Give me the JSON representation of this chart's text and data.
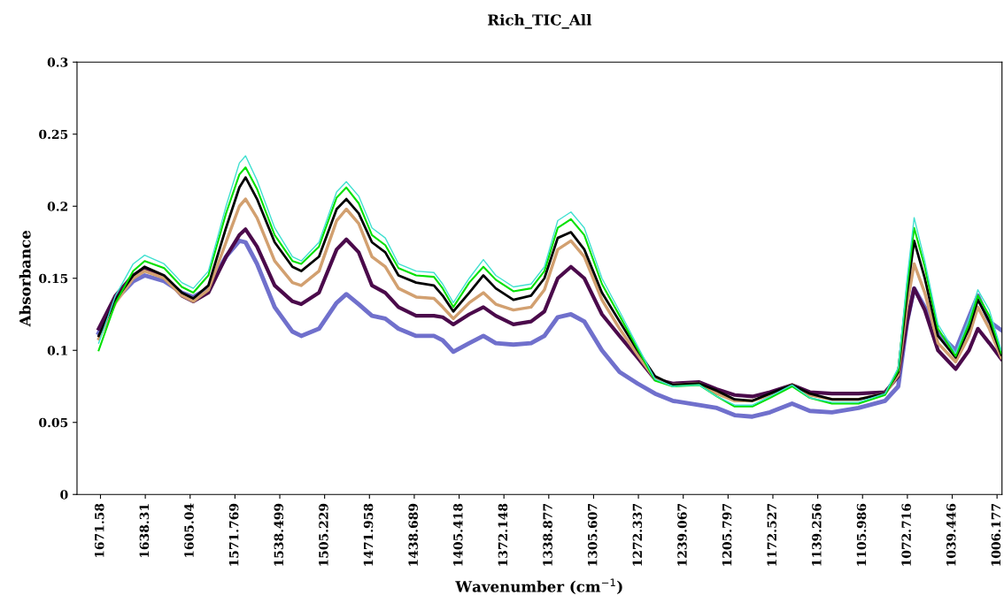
{
  "chart_data": {
    "type": "line",
    "title": "Rich_TIC_All",
    "xlabel": "Wavenumber (cm$^{−1}$)",
    "ylabel": "Absorbance",
    "x": [
      1672.9,
      1660.4,
      1647.3,
      1638.8,
      1624.3,
      1611.2,
      1602.7,
      1591.5,
      1578.4,
      1568.5,
      1563.9,
      1555.4,
      1542.3,
      1529.1,
      1522.6,
      1509.4,
      1496.3,
      1489.1,
      1479.9,
      1470.1,
      1460.2,
      1450.4,
      1437.3,
      1424.1,
      1417.6,
      1409.7,
      1397.9,
      1387.4,
      1378.2,
      1365.1,
      1352.0,
      1342.1,
      1332.2,
      1322.4,
      1312.5,
      1299.4,
      1286.3,
      1273.0,
      1260.0,
      1246.9,
      1227.2,
      1214.1,
      1200.9,
      1187.8,
      1174.7,
      1158.3,
      1145.1,
      1128.7,
      1109.0,
      1089.3,
      1079.5,
      1072.9,
      1067.7,
      1059.8,
      1050.0,
      1036.9,
      1027.0,
      1020.4,
      1011.9,
      1003.0
    ],
    "series": [
      {
        "color": "#7070cc",
        "values": [
          0.112,
          0.135,
          0.148,
          0.152,
          0.148,
          0.14,
          0.137,
          0.143,
          0.165,
          0.176,
          0.175,
          0.16,
          0.13,
          0.113,
          0.11,
          0.115,
          0.133,
          0.139,
          0.132,
          0.124,
          0.122,
          0.115,
          0.11,
          0.11,
          0.107,
          0.099,
          0.105,
          0.11,
          0.105,
          0.104,
          0.105,
          0.11,
          0.123,
          0.125,
          0.12,
          0.1,
          0.085,
          0.077,
          0.07,
          0.065,
          0.062,
          0.06,
          0.055,
          0.054,
          0.057,
          0.063,
          0.058,
          0.057,
          0.06,
          0.065,
          0.075,
          0.12,
          0.143,
          0.13,
          0.112,
          0.1,
          0.123,
          0.138,
          0.12,
          0.114
        ]
      },
      {
        "color": "#4b0a4b",
        "values": [
          0.115,
          0.138,
          0.152,
          0.157,
          0.151,
          0.138,
          0.134,
          0.14,
          0.165,
          0.18,
          0.184,
          0.172,
          0.145,
          0.134,
          0.132,
          0.14,
          0.17,
          0.177,
          0.168,
          0.145,
          0.14,
          0.13,
          0.124,
          0.124,
          0.123,
          0.118,
          0.125,
          0.13,
          0.124,
          0.118,
          0.12,
          0.127,
          0.15,
          0.158,
          0.15,
          0.125,
          0.11,
          0.095,
          0.08,
          0.077,
          0.078,
          0.073,
          0.069,
          0.068,
          0.071,
          0.076,
          0.071,
          0.07,
          0.07,
          0.071,
          0.082,
          0.12,
          0.143,
          0.128,
          0.1,
          0.087,
          0.1,
          0.115,
          0.105,
          0.094
        ]
      },
      {
        "color": "#d2a070",
        "values": [
          0.108,
          0.133,
          0.15,
          0.155,
          0.15,
          0.138,
          0.134,
          0.142,
          0.175,
          0.2,
          0.205,
          0.192,
          0.162,
          0.147,
          0.145,
          0.155,
          0.19,
          0.198,
          0.188,
          0.165,
          0.158,
          0.143,
          0.137,
          0.136,
          0.13,
          0.122,
          0.133,
          0.14,
          0.132,
          0.128,
          0.13,
          0.142,
          0.17,
          0.176,
          0.165,
          0.135,
          0.115,
          0.097,
          0.08,
          0.076,
          0.077,
          0.07,
          0.065,
          0.065,
          0.069,
          0.076,
          0.069,
          0.066,
          0.066,
          0.07,
          0.083,
          0.132,
          0.16,
          0.14,
          0.105,
          0.092,
          0.11,
          0.13,
          0.115,
          0.095
        ]
      },
      {
        "color": "#000000",
        "values": [
          0.11,
          0.135,
          0.152,
          0.158,
          0.152,
          0.14,
          0.136,
          0.145,
          0.185,
          0.213,
          0.22,
          0.205,
          0.175,
          0.158,
          0.155,
          0.165,
          0.198,
          0.205,
          0.195,
          0.175,
          0.168,
          0.152,
          0.147,
          0.145,
          0.138,
          0.127,
          0.14,
          0.152,
          0.143,
          0.135,
          0.138,
          0.15,
          0.178,
          0.182,
          0.17,
          0.14,
          0.12,
          0.1,
          0.082,
          0.076,
          0.077,
          0.072,
          0.066,
          0.065,
          0.07,
          0.076,
          0.07,
          0.066,
          0.066,
          0.07,
          0.085,
          0.14,
          0.176,
          0.15,
          0.11,
          0.095,
          0.115,
          0.135,
          0.12,
          0.097
        ]
      },
      {
        "color": "#00e000",
        "values": [
          0.1,
          0.133,
          0.155,
          0.162,
          0.157,
          0.144,
          0.14,
          0.152,
          0.195,
          0.222,
          0.227,
          0.212,
          0.18,
          0.162,
          0.16,
          0.172,
          0.206,
          0.213,
          0.202,
          0.18,
          0.173,
          0.157,
          0.152,
          0.151,
          0.143,
          0.13,
          0.147,
          0.158,
          0.149,
          0.141,
          0.143,
          0.155,
          0.185,
          0.191,
          0.18,
          0.146,
          0.124,
          0.101,
          0.079,
          0.075,
          0.076,
          0.068,
          0.061,
          0.061,
          0.067,
          0.075,
          0.067,
          0.063,
          0.063,
          0.069,
          0.086,
          0.145,
          0.185,
          0.158,
          0.115,
          0.096,
          0.118,
          0.138,
          0.124,
          0.098
        ]
      },
      {
        "color": "#40e0d0",
        "values": [
          0.105,
          0.138,
          0.16,
          0.166,
          0.16,
          0.147,
          0.143,
          0.155,
          0.2,
          0.23,
          0.235,
          0.218,
          0.185,
          0.165,
          0.162,
          0.175,
          0.21,
          0.217,
          0.207,
          0.185,
          0.178,
          0.16,
          0.155,
          0.154,
          0.146,
          0.133,
          0.15,
          0.163,
          0.152,
          0.144,
          0.146,
          0.158,
          0.19,
          0.196,
          0.185,
          0.15,
          0.127,
          0.103,
          0.08,
          0.075,
          0.076,
          0.068,
          0.062,
          0.062,
          0.068,
          0.076,
          0.067,
          0.064,
          0.064,
          0.07,
          0.088,
          0.15,
          0.192,
          0.162,
          0.118,
          0.098,
          0.122,
          0.142,
          0.128,
          0.1
        ]
      }
    ],
    "xlim": [
      1689,
      1002.5
    ],
    "xticks": [
      1671.58,
      1638.31,
      1605.04,
      1571.769,
      1538.499,
      1505.229,
      1471.958,
      1438.689,
      1405.418,
      1372.148,
      1338.877,
      1305.607,
      1272.337,
      1239.067,
      1205.797,
      1172.527,
      1139.256,
      1105.986,
      1072.716,
      1039.446,
      1006.177
    ],
    "ylim": [
      0,
      0.3
    ],
    "yticks": [
      0,
      0.05,
      0.1,
      0.15,
      0.2,
      0.25,
      0.3
    ],
    "grid": false,
    "marker": "none",
    "line_style": "solid"
  }
}
